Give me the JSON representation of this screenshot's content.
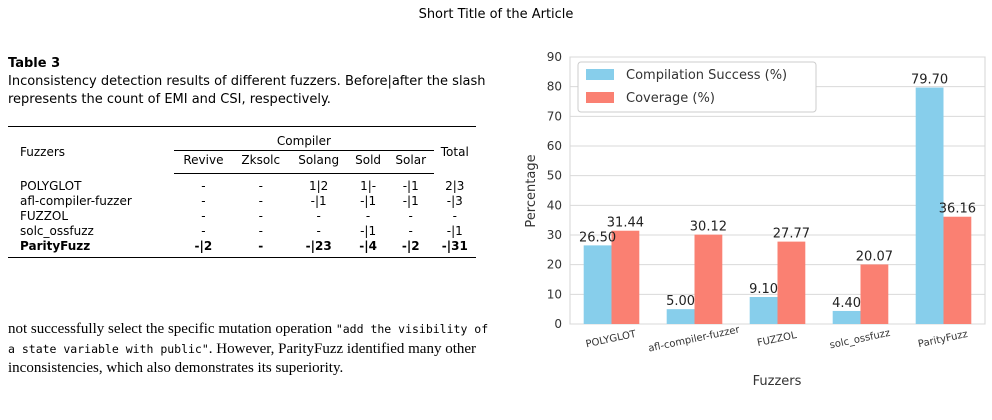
{
  "header": "Short Title of the Article",
  "table": {
    "label": "Table 3",
    "caption": "Inconsistency detection results of different fuzzers. Before|after the slash represents the count of EMI and CSI, respectively.",
    "col_fuzzers": "Fuzzers",
    "col_group": "Compiler",
    "col_total": "Total",
    "sub_cols": [
      "Revive",
      "Zksolc",
      "Solang",
      "Sold",
      "Solar"
    ],
    "rows": [
      {
        "name": "POLYGLOT",
        "cells": [
          "-",
          "-",
          "1|2",
          "1|-",
          "-|1",
          "2|3"
        ]
      },
      {
        "name": "afl-compiler-fuzzer",
        "cells": [
          "-",
          "-",
          "-|1",
          "-|1",
          "-|1",
          "-|3"
        ]
      },
      {
        "name": "FUZZOL",
        "cells": [
          "-",
          "-",
          "-",
          "-",
          "-",
          "-"
        ]
      },
      {
        "name": "solc_ossfuzz",
        "cells": [
          "-",
          "-",
          "-",
          "-|1",
          "-",
          "-|1"
        ]
      },
      {
        "name": "ParityFuzz",
        "cells": [
          "-|2",
          "-",
          "-|23",
          "-|4",
          "-|2",
          "-|31"
        ]
      }
    ]
  },
  "body": {
    "pre": "not successfully select the specific mutation operation ",
    "code": "\"add the visibility of a state variable with public\"",
    "post": ". However, ParityFuzz identified many other inconsistencies, which also demonstrates its superiority."
  },
  "chart_data": {
    "type": "bar",
    "categories": [
      "POLYGLOT",
      "afl-compiler-fuzzer",
      "FUZZOL",
      "solc_ossfuzz",
      "ParityFuzz"
    ],
    "series": [
      {
        "name": "Compilation Success (%)",
        "color": "#87ceeb",
        "values": [
          26.5,
          5.0,
          9.1,
          4.4,
          79.7
        ]
      },
      {
        "name": "Coverage (%)",
        "color": "#fa8072",
        "values": [
          31.44,
          30.12,
          27.77,
          20.07,
          36.16
        ]
      }
    ],
    "value_labels": [
      [
        "26.50",
        "5.00",
        "9.10",
        "4.40",
        "79.70"
      ],
      [
        "31.44",
        "30.12",
        "27.77",
        "20.07",
        "36.16"
      ]
    ],
    "xlabel": "Fuzzers",
    "ylabel": "Percentage",
    "ylim": [
      0,
      90
    ],
    "yticks": [
      "0",
      "10",
      "20",
      "30",
      "40",
      "50",
      "60",
      "70",
      "80",
      "90"
    ],
    "grid": true,
    "legend_position": "top-left"
  }
}
